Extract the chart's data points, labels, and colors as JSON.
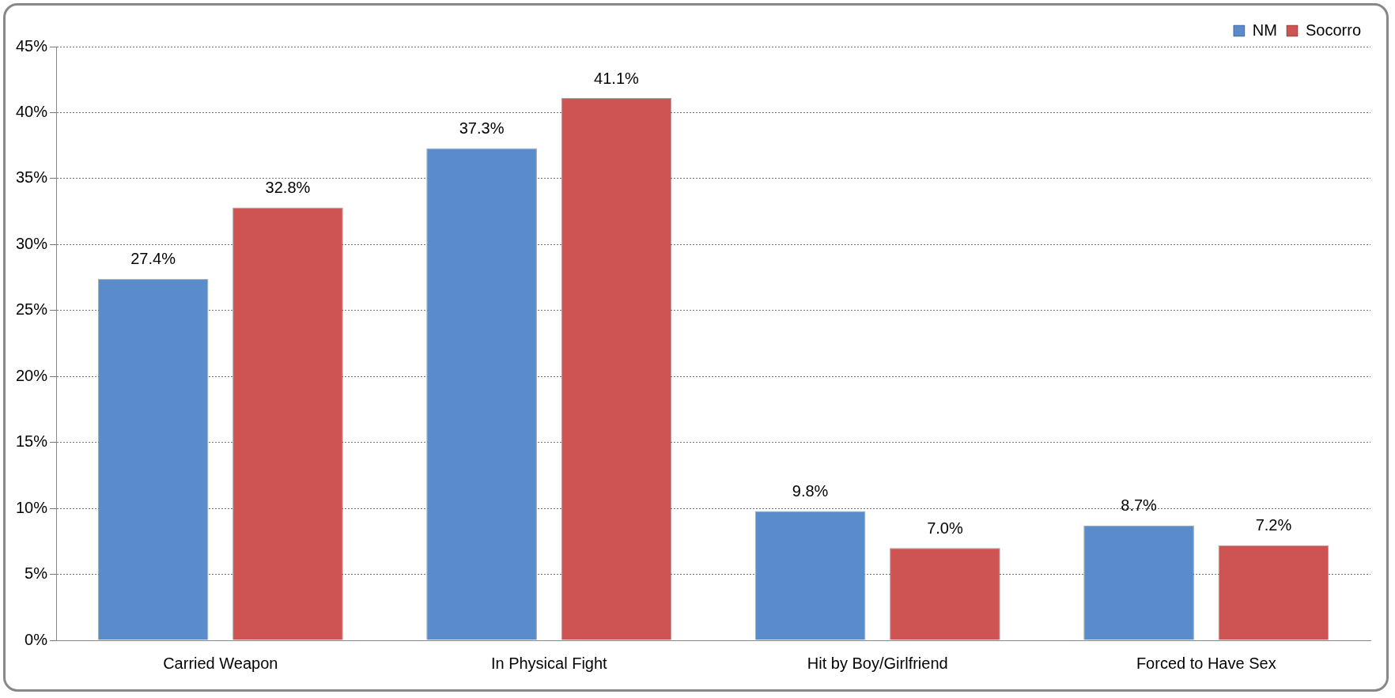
{
  "chart_data": {
    "type": "bar",
    "categories": [
      "Carried Weapon",
      "In Physical Fight",
      "Hit by Boy/Girlfriend",
      "Forced to Have Sex"
    ],
    "series": [
      {
        "name": "NM",
        "color": "#5a8ccc",
        "values": [
          27.4,
          37.3,
          9.8,
          8.7
        ],
        "value_labels": [
          "27.4%",
          "37.3%",
          "9.8%",
          "8.7%"
        ]
      },
      {
        "name": "Socorro",
        "color": "#cd5452",
        "values": [
          32.8,
          41.1,
          7.0,
          7.2
        ],
        "value_labels": [
          "32.8%",
          "41.1%",
          "7.0%",
          "7.2%"
        ]
      }
    ],
    "ylim": [
      0,
      45
    ],
    "yticks": [
      {
        "value": 0,
        "label": "0%"
      },
      {
        "value": 5,
        "label": "5%"
      },
      {
        "value": 10,
        "label": "10%"
      },
      {
        "value": 15,
        "label": "15%"
      },
      {
        "value": 20,
        "label": "20%"
      },
      {
        "value": 25,
        "label": "25%"
      },
      {
        "value": 30,
        "label": "30%"
      },
      {
        "value": 35,
        "label": "35%"
      },
      {
        "value": 40,
        "label": "40%"
      },
      {
        "value": 45,
        "label": "45%"
      }
    ],
    "grid": "y",
    "legend": "top right"
  }
}
